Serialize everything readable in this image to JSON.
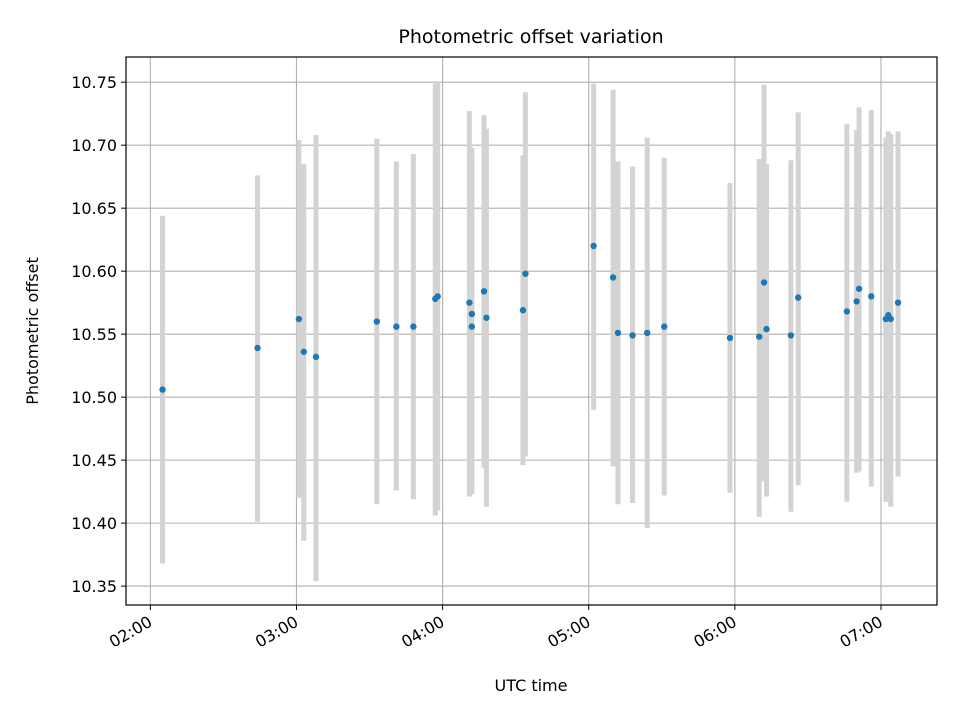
{
  "chart_data": {
    "type": "scatter",
    "title": "Photometric offset variation",
    "xlabel": "UTC time",
    "ylabel": "Photometric offset",
    "x_ticks": [
      "02:00",
      "03:00",
      "04:00",
      "05:00",
      "06:00",
      "07:00"
    ],
    "y_ticks": [
      "10.35",
      "10.40",
      "10.45",
      "10.50",
      "10.55",
      "10.60",
      "10.65",
      "10.70",
      "10.75"
    ],
    "xlim": [
      "01:50",
      "07:23"
    ],
    "ylim": [
      10.335,
      10.77
    ],
    "grid": true,
    "errorbar_color": "#d3d3d3",
    "marker_color": "#1f77b4",
    "series": [
      {
        "points": [
          {
            "x": "02:05",
            "y": 10.506,
            "ylow": 10.368,
            "yhigh": 10.644
          },
          {
            "x": "02:44",
            "y": 10.539,
            "ylow": 10.401,
            "yhigh": 10.676
          },
          {
            "x": "03:01",
            "y": 10.562,
            "ylow": 10.42,
            "yhigh": 10.704
          },
          {
            "x": "03:03",
            "y": 10.536,
            "ylow": 10.386,
            "yhigh": 10.685
          },
          {
            "x": "03:08",
            "y": 10.532,
            "ylow": 10.354,
            "yhigh": 10.708
          },
          {
            "x": "03:33",
            "y": 10.56,
            "ylow": 10.415,
            "yhigh": 10.705
          },
          {
            "x": "03:41",
            "y": 10.556,
            "ylow": 10.426,
            "yhigh": 10.687
          },
          {
            "x": "03:48",
            "y": 10.556,
            "ylow": 10.419,
            "yhigh": 10.693
          },
          {
            "x": "03:57",
            "y": 10.578,
            "ylow": 10.406,
            "yhigh": 10.749
          },
          {
            "x": "03:58",
            "y": 10.58,
            "ylow": 10.41,
            "yhigh": 10.75
          },
          {
            "x": "04:11",
            "y": 10.575,
            "ylow": 10.421,
            "yhigh": 10.727
          },
          {
            "x": "04:12",
            "y": 10.556,
            "ylow": 10.423,
            "yhigh": 10.689
          },
          {
            "x": "04:12",
            "y": 10.566,
            "ylow": 10.43,
            "yhigh": 10.698
          },
          {
            "x": "04:17",
            "y": 10.584,
            "ylow": 10.444,
            "yhigh": 10.724
          },
          {
            "x": "04:18",
            "y": 10.563,
            "ylow": 10.413,
            "yhigh": 10.713
          },
          {
            "x": "04:33",
            "y": 10.569,
            "ylow": 10.446,
            "yhigh": 10.692
          },
          {
            "x": "04:34",
            "y": 10.598,
            "ylow": 10.453,
            "yhigh": 10.742
          },
          {
            "x": "05:02",
            "y": 10.62,
            "ylow": 10.49,
            "yhigh": 10.749
          },
          {
            "x": "05:10",
            "y": 10.595,
            "ylow": 10.445,
            "yhigh": 10.744
          },
          {
            "x": "05:12",
            "y": 10.551,
            "ylow": 10.415,
            "yhigh": 10.687
          },
          {
            "x": "05:18",
            "y": 10.549,
            "ylow": 10.416,
            "yhigh": 10.683
          },
          {
            "x": "05:24",
            "y": 10.551,
            "ylow": 10.396,
            "yhigh": 10.706
          },
          {
            "x": "05:31",
            "y": 10.556,
            "ylow": 10.422,
            "yhigh": 10.69
          },
          {
            "x": "05:58",
            "y": 10.547,
            "ylow": 10.424,
            "yhigh": 10.67
          },
          {
            "x": "06:10",
            "y": 10.548,
            "ylow": 10.405,
            "yhigh": 10.689
          },
          {
            "x": "06:12",
            "y": 10.591,
            "ylow": 10.433,
            "yhigh": 10.748
          },
          {
            "x": "06:13",
            "y": 10.554,
            "ylow": 10.421,
            "yhigh": 10.685
          },
          {
            "x": "06:23",
            "y": 10.549,
            "ylow": 10.409,
            "yhigh": 10.688
          },
          {
            "x": "06:26",
            "y": 10.579,
            "ylow": 10.43,
            "yhigh": 10.726
          },
          {
            "x": "06:46",
            "y": 10.568,
            "ylow": 10.417,
            "yhigh": 10.717
          },
          {
            "x": "06:50",
            "y": 10.576,
            "ylow": 10.44,
            "yhigh": 10.712
          },
          {
            "x": "06:51",
            "y": 10.586,
            "ylow": 10.441,
            "yhigh": 10.73
          },
          {
            "x": "06:56",
            "y": 10.58,
            "ylow": 10.429,
            "yhigh": 10.728
          },
          {
            "x": "07:02",
            "y": 10.562,
            "ylow": 10.417,
            "yhigh": 10.706
          },
          {
            "x": "07:03",
            "y": 10.565,
            "ylow": 10.418,
            "yhigh": 10.711
          },
          {
            "x": "07:04",
            "y": 10.562,
            "ylow": 10.413,
            "yhigh": 10.709
          },
          {
            "x": "07:07",
            "y": 10.575,
            "ylow": 10.437,
            "yhigh": 10.711
          }
        ]
      }
    ]
  }
}
